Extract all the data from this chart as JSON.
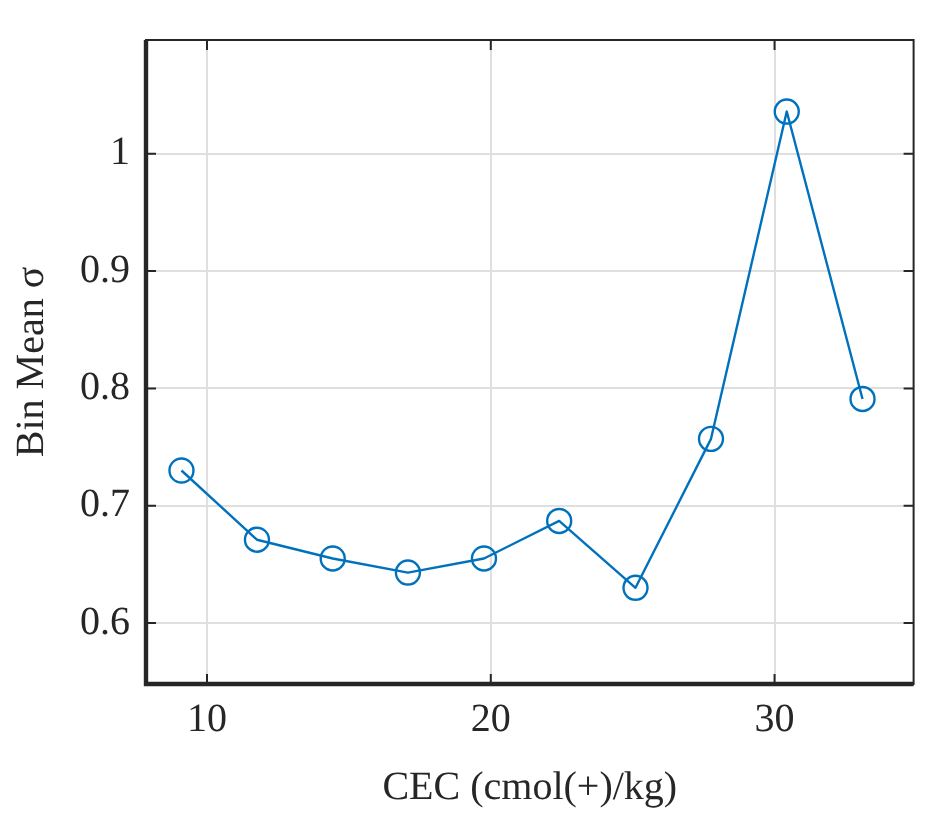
{
  "chart_data": {
    "type": "line",
    "xlabel": "CEC (cmol(+)/kg)",
    "ylabel": "Bin Mean σ",
    "x": [
      9.1,
      11.76,
      14.43,
      17.08,
      19.76,
      22.41,
      25.1,
      27.76,
      30.43,
      33.1
    ],
    "series": [
      {
        "color": "#0072bd",
        "values": [
          0.73,
          0.671,
          0.655,
          0.643,
          0.655,
          0.687,
          0.63,
          0.757,
          1.036,
          0.791
        ]
      }
    ],
    "xlim": [
      7.85,
      34.9
    ],
    "xticks": [
      10,
      20,
      30
    ],
    "ylim": [
      0.548,
      1.097
    ],
    "yticks": [
      0.6,
      0.7,
      0.8,
      0.9,
      1
    ],
    "grid": true,
    "legend": false,
    "marker": "circle",
    "line_style": "solid"
  }
}
